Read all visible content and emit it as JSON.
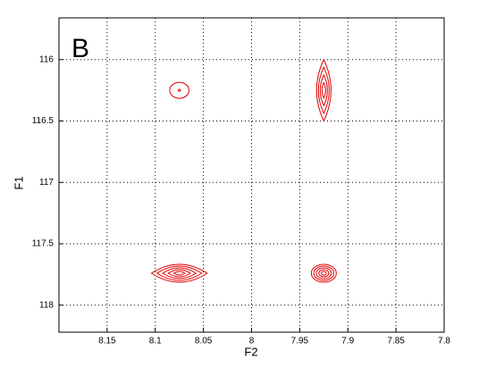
{
  "chart_data": {
    "type": "contour",
    "panel_label": "B",
    "x_label": "F2",
    "y_label": "F1",
    "xlim": [
      8.2,
      7.8
    ],
    "ylim": [
      115.66,
      118.22
    ],
    "xticks": [
      8.15,
      8.1,
      8.05,
      8,
      7.95,
      7.9,
      7.85,
      7.8
    ],
    "yticks": [
      116,
      116.5,
      117,
      117.5,
      118
    ],
    "grid": true,
    "color": "#e00000",
    "peaks": [
      {
        "x": 8.075,
        "y": 116.25,
        "dx": 0.01,
        "dy": 0.065,
        "shape": "ellipse",
        "levels": 2
      },
      {
        "x": 7.925,
        "y": 116.25,
        "dx": 0.0075,
        "dy": 0.25,
        "shape": "lens",
        "levels": 4
      },
      {
        "x": 8.075,
        "y": 117.74,
        "dx": 0.029,
        "dy": 0.073,
        "shape": "lens",
        "levels": 5
      },
      {
        "x": 7.925,
        "y": 117.74,
        "dx": 0.013,
        "dy": 0.073,
        "shape": "ellipse",
        "levels": 5
      }
    ]
  }
}
